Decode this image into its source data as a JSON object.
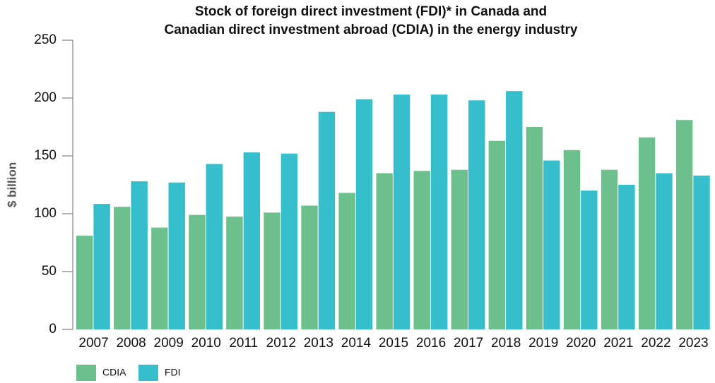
{
  "chart_data": {
    "type": "bar",
    "title": [
      "Stock of foreign direct investment (FDI)* in Canada and",
      "Canadian direct investment abroad (CDIA) in the energy industry"
    ],
    "y_label": "$ billion",
    "categories": [
      "2007",
      "2008",
      "2009",
      "2010",
      "2011",
      "2012",
      "2013",
      "2014",
      "2015",
      "2016",
      "2017",
      "2018",
      "2019",
      "2020",
      "2021",
      "2022",
      "2023"
    ],
    "series": [
      {
        "name": "CDIA",
        "color": "#6cc08b",
        "values": [
          81,
          106,
          88,
          99,
          97.5,
          101,
          107,
          118,
          135,
          137,
          138,
          163,
          175,
          155,
          138,
          166,
          181
        ]
      },
      {
        "name": "FDI",
        "color": "#35bfcd",
        "values": [
          108.5,
          128,
          127,
          143,
          153,
          152,
          188,
          199,
          203,
          203,
          198,
          206,
          146,
          120,
          125,
          135,
          133
        ]
      }
    ],
    "ylim": [
      0,
      250
    ],
    "yticks": [
      0,
      50,
      100,
      150,
      200,
      250
    ]
  }
}
